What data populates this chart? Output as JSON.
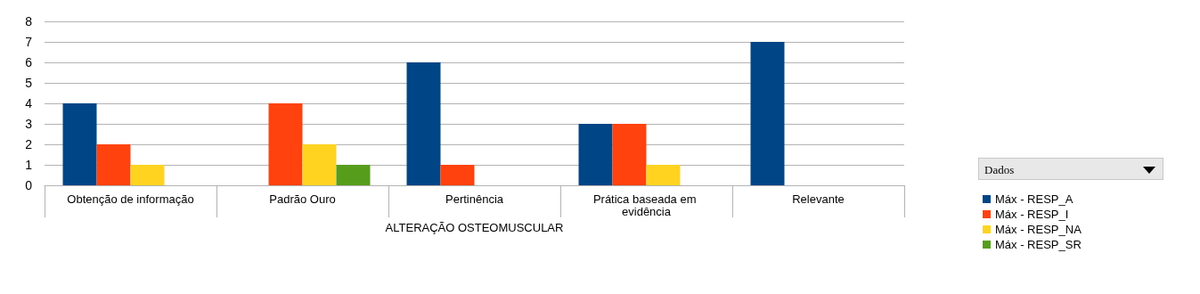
{
  "chart_data": {
    "type": "bar",
    "xlabel": "ALTERAÇÃO OSTEOMUSCULAR",
    "legend_title": "Dados",
    "categories": [
      "Obtenção de informação",
      "Padrão Ouro",
      "Pertinência",
      "Prática baseada em evidência",
      "Relevante"
    ],
    "series": [
      {
        "name": "Máx - RESP_A",
        "color": "#004586",
        "values": [
          4,
          null,
          6,
          3,
          7
        ]
      },
      {
        "name": "Máx - RESP_I",
        "color": "#ff420e",
        "values": [
          2,
          4,
          1,
          3,
          null
        ]
      },
      {
        "name": "Máx - RESP_NA",
        "color": "#ffd320",
        "values": [
          1,
          2,
          null,
          1,
          null
        ]
      },
      {
        "name": "Máx - RESP_SR",
        "color": "#579d1c",
        "values": [
          null,
          1,
          null,
          null,
          null
        ]
      }
    ],
    "ylim": [
      0,
      8
    ],
    "yticks": [
      0,
      1,
      2,
      3,
      4,
      5,
      6,
      7,
      8
    ],
    "grid": "y",
    "legend": "right"
  }
}
